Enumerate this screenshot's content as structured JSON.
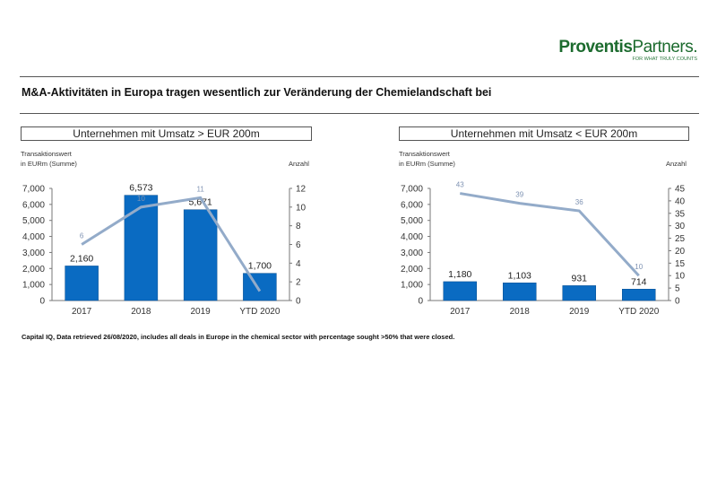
{
  "logo": {
    "brand_bold": "Proventis",
    "brand_light": "Partners.",
    "tagline": "FOR WHAT TRULY COUNTS"
  },
  "title": "M&A-Aktivitäten in Europa tragen wesentlich zur Veränderung der Chemielandschaft bei",
  "footnote": "Capital IQ, Data retrieved 26/08/2020, includes all deals in Europe in the chemical sector with percentage sought >50% that were closed.",
  "colors": {
    "bar": "#0a6bc2",
    "line": "#93abc9",
    "brand": "#1c6b2e"
  },
  "chart_data": [
    {
      "type": "bar+line",
      "title": "Unternehmen mit Umsatz > EUR 200m",
      "ylabel_line1": "Transaktionswert",
      "ylabel_line2": "in EURm  (Summe)",
      "y2label": "Anzahl",
      "categories": [
        "2017",
        "2018",
        "2019",
        "YTD 2020"
      ],
      "bar_values": [
        2160,
        6573,
        5671,
        1700
      ],
      "bar_labels": [
        "2,160",
        "6,573",
        "5,671",
        "1,700"
      ],
      "line_values": [
        6,
        10,
        11,
        1
      ],
      "line_labels": [
        "6",
        "10",
        "11",
        ""
      ],
      "ylim": [
        0,
        7000
      ],
      "yticks": [
        "0",
        "1,000",
        "2,000",
        "3,000",
        "4,000",
        "5,000",
        "6,000",
        "7,000"
      ],
      "y2lim": [
        0,
        12
      ],
      "y2ticks": [
        "0",
        "2",
        "4",
        "6",
        "8",
        "10",
        "12"
      ]
    },
    {
      "type": "bar+line",
      "title": "Unternehmen mit Umsatz < EUR 200m",
      "ylabel_line1": "Transaktionswert",
      "ylabel_line2": "in EURm  (Summe)",
      "y2label": "Anzahl",
      "categories": [
        "2017",
        "2018",
        "2019",
        "YTD 2020"
      ],
      "bar_values": [
        1180,
        1103,
        931,
        714
      ],
      "bar_labels": [
        "1,180",
        "1,103",
        "931",
        "714"
      ],
      "line_values": [
        43,
        39,
        36,
        10
      ],
      "line_labels": [
        "43",
        "39",
        "36",
        "10"
      ],
      "ylim": [
        0,
        7000
      ],
      "yticks": [
        "0",
        "1,000",
        "2,000",
        "3,000",
        "4,000",
        "5,000",
        "6,000",
        "7,000"
      ],
      "y2lim": [
        0,
        45
      ],
      "y2ticks": [
        "0",
        "5",
        "10",
        "15",
        "20",
        "25",
        "30",
        "35",
        "40",
        "45"
      ]
    }
  ]
}
